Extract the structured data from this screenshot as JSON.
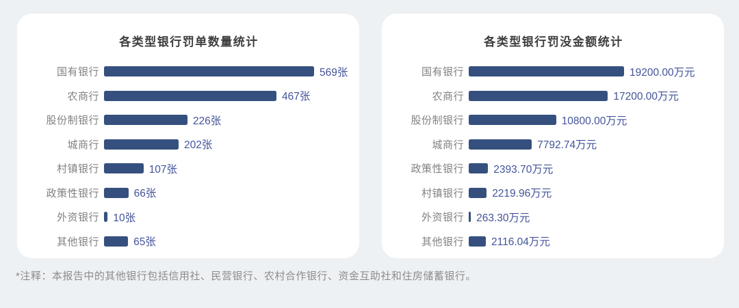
{
  "page": {
    "note": "*注释：本报告中的其他银行包括信用社、民营银行、农村合作银行、资金互助社和住房储蓄银行。"
  },
  "colors": {
    "page_bg": "#eef1f3",
    "card_bg": "#ffffff",
    "bar": "#35507e",
    "value_text": "#43539a",
    "label_text": "#818181",
    "title_text": "#3e3e3e",
    "note_text": "#8c8c8c"
  },
  "chart_data": [
    {
      "type": "bar",
      "orientation": "horizontal",
      "title": "各类型银行罚单数量统计",
      "unit": "张",
      "categories": [
        "国有银行",
        "农商行",
        "股份制银行",
        "城商行",
        "村镇银行",
        "政策性银行",
        "外资银行",
        "其他银行"
      ],
      "values": [
        569,
        467,
        226,
        202,
        107,
        66,
        10,
        65
      ],
      "value_labels": [
        "569张",
        "467张",
        "226张",
        "202张",
        "107张",
        "66张",
        "10张",
        "65张"
      ],
      "xlim": [
        0,
        569
      ],
      "grid": false,
      "legend": false
    },
    {
      "type": "bar",
      "orientation": "horizontal",
      "title": "各类型银行罚没金额统计",
      "unit": "万元",
      "categories": [
        "国有银行",
        "农商行",
        "股份制银行",
        "城商行",
        "政策性银行",
        "村镇银行",
        "外资银行",
        "其他银行"
      ],
      "values": [
        19200.0,
        17200.0,
        10800.0,
        7792.74,
        2393.7,
        2219.96,
        263.3,
        2116.04
      ],
      "value_labels": [
        "19200.00万元",
        "17200.00万元",
        "10800.00万元",
        "7792.74万元",
        "2393.70万元",
        "2219.96万元",
        "263.30万元",
        "2116.04万元"
      ],
      "xlim": [
        0,
        19200
      ],
      "grid": false,
      "legend": false
    }
  ]
}
